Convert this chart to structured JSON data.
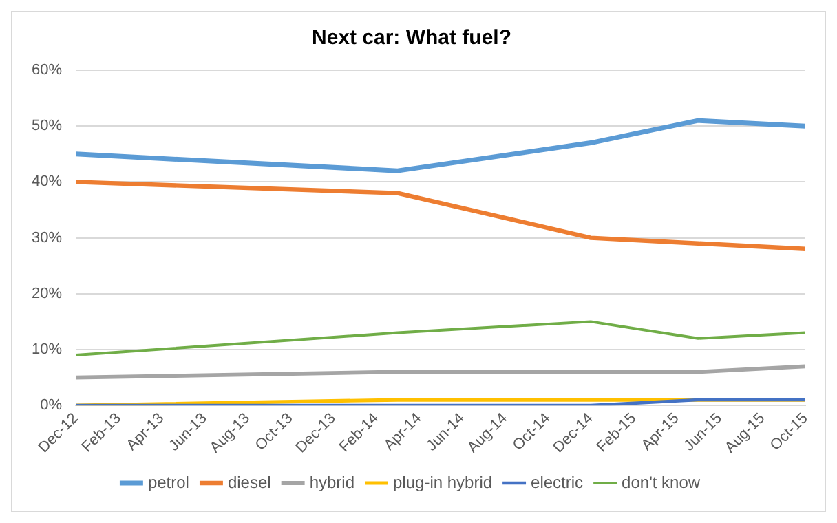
{
  "chart_data": {
    "type": "line",
    "title": "Next car: What fuel?",
    "x": [
      "2012-12",
      "2014-03",
      "2014-12",
      "2015-05",
      "2015-10"
    ],
    "series": [
      {
        "name": "petrol",
        "color": "#5b9bd5",
        "values": [
          45,
          42,
          47,
          51,
          50
        ]
      },
      {
        "name": "diesel",
        "color": "#ed7d31",
        "values": [
          40,
          38,
          30,
          29,
          28
        ]
      },
      {
        "name": "hybrid",
        "color": "#a5a5a5",
        "values": [
          5,
          6,
          6,
          6,
          7
        ]
      },
      {
        "name": "plug-in hybrid",
        "color": "#ffc000",
        "values": [
          0,
          1,
          1,
          1,
          1
        ]
      },
      {
        "name": "electric",
        "color": "#4472c4",
        "values": [
          0,
          0,
          0,
          1,
          1
        ]
      },
      {
        "name": "don't know",
        "color": "#70ad47",
        "values": [
          9,
          13,
          15,
          12,
          13
        ]
      }
    ],
    "xlim": [
      "2012-12",
      "2015-10"
    ],
    "xticks": [
      {
        "value": "2012-12",
        "label": "Dec-12"
      },
      {
        "value": "2013-02",
        "label": "Feb-13"
      },
      {
        "value": "2013-04",
        "label": "Apr-13"
      },
      {
        "value": "2013-06",
        "label": "Jun-13"
      },
      {
        "value": "2013-08",
        "label": "Aug-13"
      },
      {
        "value": "2013-10",
        "label": "Oct-13"
      },
      {
        "value": "2013-12",
        "label": "Dec-13"
      },
      {
        "value": "2014-02",
        "label": "Feb-14"
      },
      {
        "value": "2014-04",
        "label": "Apr-14"
      },
      {
        "value": "2014-06",
        "label": "Jun-14"
      },
      {
        "value": "2014-08",
        "label": "Aug-14"
      },
      {
        "value": "2014-10",
        "label": "Oct-14"
      },
      {
        "value": "2014-12",
        "label": "Dec-14"
      },
      {
        "value": "2015-02",
        "label": "Feb-15"
      },
      {
        "value": "2015-04",
        "label": "Apr-15"
      },
      {
        "value": "2015-06",
        "label": "Jun-15"
      },
      {
        "value": "2015-08",
        "label": "Aug-15"
      },
      {
        "value": "2015-10",
        "label": "Oct-15"
      }
    ],
    "ylim": [
      0,
      60
    ],
    "yticks": [
      {
        "value": 0,
        "label": "0%"
      },
      {
        "value": 10,
        "label": "10%"
      },
      {
        "value": 20,
        "label": "20%"
      },
      {
        "value": 30,
        "label": "30%"
      },
      {
        "value": 40,
        "label": "40%"
      },
      {
        "value": 50,
        "label": "50%"
      },
      {
        "value": 60,
        "label": "60%"
      }
    ],
    "grid": "y",
    "legend": "bottom",
    "marker": "none",
    "line_style": "solid"
  }
}
